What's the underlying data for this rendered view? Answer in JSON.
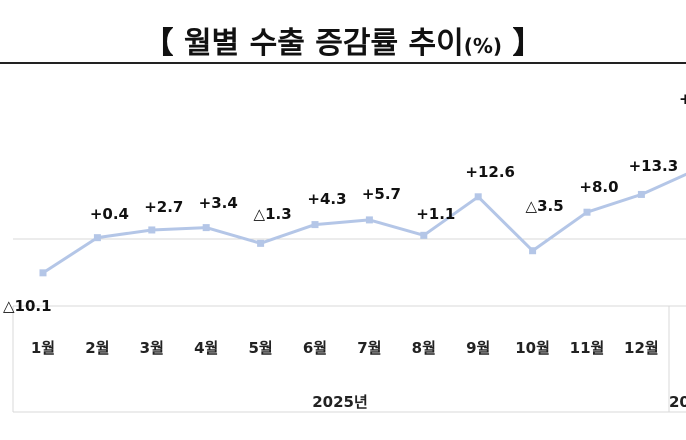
{
  "title": {
    "main": "【 월별 수출 증감률 추이",
    "unit": "(%)",
    "close": " 】"
  },
  "chart_data": {
    "type": "line",
    "categories": [
      "1월",
      "2월",
      "3월",
      "4월",
      "5월",
      "6월",
      "7월",
      "8월",
      "9월",
      "10월",
      "11월",
      "12월"
    ],
    "series": [
      {
        "values": [
          -10.1,
          0.4,
          2.7,
          3.4,
          -1.3,
          4.3,
          5.7,
          1.1,
          12.6,
          -3.5,
          8.0,
          13.3
        ]
      }
    ],
    "data_labels": [
      "△10.1",
      "+0.4",
      "+2.7",
      "+3.4",
      "△1.3",
      "+4.3",
      "+5.7",
      "+1.1",
      "+12.6",
      "△3.5",
      "+8.0",
      "+13.3"
    ],
    "group_labels": [
      "2025년",
      "20"
    ],
    "cut_off_label": "+",
    "ylim": [
      -13,
      27
    ],
    "zero_line": true,
    "grid": false,
    "line_color": "#b4c6e7",
    "marker_color": "#b4c6e7"
  }
}
